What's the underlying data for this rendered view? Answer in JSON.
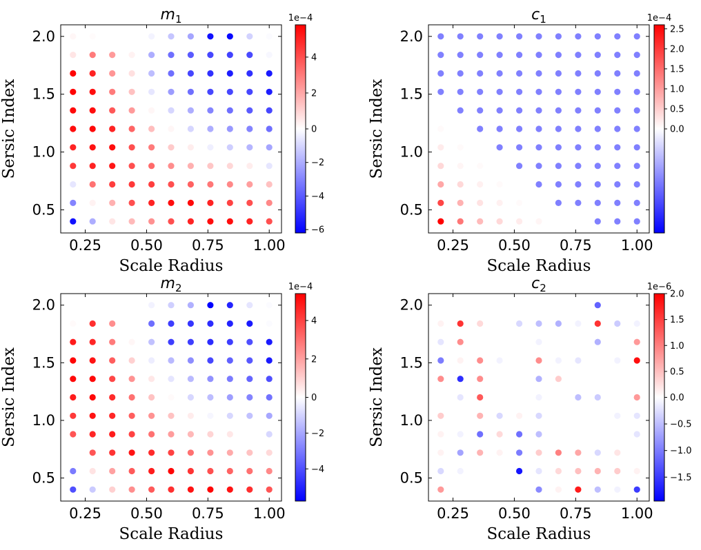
{
  "figure": {
    "colormap": [
      "#0000ff",
      "#ffffff",
      "#ff0000"
    ]
  },
  "chart_data": [
    {
      "type": "scatter",
      "title": "m",
      "title_subscript": "1",
      "xlabel": "Scale Radius",
      "ylabel": "Sersic Index",
      "xlim": [
        0.15,
        1.05
      ],
      "ylim": [
        0.3,
        2.1
      ],
      "xticks": [
        "0.25",
        "0.50",
        "0.75",
        "1.00"
      ],
      "yticks": [
        "0.5",
        "1.0",
        "1.5",
        "2.0"
      ],
      "x": [
        0.2,
        0.28,
        0.36,
        0.44,
        0.52,
        0.6,
        0.68,
        0.76,
        0.84,
        0.92,
        1.0
      ],
      "y": [
        0.4,
        0.56,
        0.72,
        0.88,
        1.04,
        1.2,
        1.36,
        1.52,
        1.68,
        1.84,
        2.0
      ],
      "colorbar": {
        "min": -6.2,
        "max": 5.8,
        "ticks": [
          "−6",
          "−4",
          "−2",
          "0",
          "2",
          "4"
        ],
        "tick_values": [
          -6,
          -4,
          -2,
          0,
          2,
          4
        ],
        "exponent": "1e−4"
      },
      "values": [
        [
          -5.8,
          -2.0,
          0.6,
          1.6,
          2.5,
          4.0,
          5.0,
          5.5,
          5.5,
          5.0,
          4.0
        ],
        [
          -3.0,
          0.3,
          1.8,
          4.0,
          5.0,
          5.5,
          5.6,
          5.0,
          4.3,
          4.0,
          2.7
        ],
        [
          -0.6,
          3.2,
          4.4,
          4.5,
          4.4,
          4.0,
          3.6,
          3.1,
          2.7,
          2.2,
          1.4
        ],
        [
          4.5,
          5.0,
          5.3,
          4.0,
          3.4,
          2.6,
          1.8,
          1.3,
          0.9,
          0.4,
          -0.6
        ],
        [
          5.0,
          5.4,
          5.5,
          4.0,
          3.0,
          1.2,
          0.4,
          -0.4,
          -1.2,
          -1.8,
          -2.2
        ],
        [
          5.5,
          5.6,
          5.0,
          3.5,
          1.5,
          0.2,
          -1.0,
          -2.0,
          -2.5,
          -3.0,
          -3.5
        ],
        [
          5.6,
          5.5,
          3.8,
          2.3,
          0.2,
          -1.0,
          -2.0,
          -3.0,
          -3.5,
          -4.0,
          -4.5
        ],
        [
          5.7,
          5.5,
          3.0,
          1.4,
          -0.6,
          -2.4,
          -3.5,
          -4.5,
          -4.5,
          -4.5,
          -5.5
        ],
        [
          5.7,
          5.0,
          2.4,
          0.7,
          -1.6,
          -3.5,
          -4.5,
          -5.0,
          -5.5,
          -5.0,
          -5.6
        ],
        [
          0.6,
          3.0,
          2.3,
          0.3,
          -2.0,
          -3.5,
          -4.0,
          -4.5,
          -4.6,
          -4.4,
          -0.2
        ],
        [
          0.2,
          0.1,
          0.0,
          0.0,
          -0.3,
          -1.4,
          -2.2,
          -5.8,
          -6.0,
          -1.1,
          -0.1
        ]
      ]
    },
    {
      "type": "scatter",
      "title": "c",
      "title_subscript": "1",
      "xlabel": "Scale Radius",
      "ylabel": "Sersic Index",
      "xlim": [
        0.15,
        1.05
      ],
      "ylim": [
        0.3,
        2.1
      ],
      "xticks": [
        "0.25",
        "0.50",
        "0.75",
        "1.00"
      ],
      "yticks": [
        "0.5",
        "1.0",
        "1.5",
        "2.0"
      ],
      "x": [
        0.2,
        0.28,
        0.36,
        0.44,
        0.52,
        0.6,
        0.68,
        0.76,
        0.84,
        0.92,
        1.0
      ],
      "y": [
        0.4,
        0.56,
        0.72,
        0.88,
        1.04,
        1.2,
        1.36,
        1.52,
        1.68,
        1.84,
        2.0
      ],
      "colorbar": {
        "min": -0.1,
        "max": 2.6,
        "ticks": [
          "0.0",
          "0.5",
          "1.0",
          "1.5",
          "2.0",
          "2.5"
        ],
        "tick_values": [
          0.0,
          0.5,
          1.0,
          1.5,
          2.0,
          2.5
        ],
        "exponent": "1e−4"
      },
      "values": [
        [
          2.6,
          1.4,
          0.7,
          0.4,
          0.2,
          0.1,
          0.0,
          0.0,
          -0.05,
          -0.05,
          -0.05
        ],
        [
          1.9,
          0.8,
          0.3,
          0.15,
          0.05,
          0.0,
          -0.05,
          -0.05,
          -0.05,
          -0.05,
          -0.05
        ],
        [
          0.9,
          0.4,
          0.15,
          0.05,
          0.0,
          -0.05,
          -0.05,
          -0.05,
          -0.05,
          -0.05,
          -0.05
        ],
        [
          0.4,
          0.1,
          0.05,
          0.0,
          -0.05,
          -0.05,
          -0.05,
          -0.05,
          -0.05,
          -0.05,
          -0.05
        ],
        [
          0.2,
          0.05,
          0.0,
          -0.05,
          -0.05,
          -0.05,
          -0.05,
          -0.05,
          -0.05,
          -0.05,
          -0.05
        ],
        [
          0.05,
          0.0,
          -0.05,
          -0.05,
          -0.05,
          -0.05,
          -0.05,
          -0.05,
          -0.05,
          -0.05,
          -0.05
        ],
        [
          0.0,
          -0.05,
          -0.05,
          -0.05,
          -0.05,
          -0.05,
          -0.05,
          -0.05,
          -0.05,
          -0.05,
          -0.05
        ],
        [
          -0.05,
          -0.05,
          -0.05,
          -0.05,
          -0.05,
          -0.05,
          -0.05,
          -0.05,
          -0.05,
          -0.05,
          -0.05
        ],
        [
          -0.05,
          -0.05,
          -0.05,
          -0.05,
          -0.05,
          -0.05,
          -0.05,
          -0.05,
          -0.05,
          -0.05,
          -0.05
        ],
        [
          -0.05,
          -0.05,
          -0.05,
          -0.05,
          -0.05,
          -0.05,
          -0.05,
          -0.05,
          -0.05,
          -0.05,
          -0.05
        ],
        [
          -0.05,
          -0.05,
          -0.05,
          -0.05,
          -0.05,
          -0.05,
          -0.05,
          -0.05,
          -0.05,
          -0.05,
          -0.05
        ]
      ]
    },
    {
      "type": "scatter",
      "title": "m",
      "title_subscript": "2",
      "xlabel": "Scale Radius",
      "ylabel": "Sersic Index",
      "xlim": [
        0.15,
        1.05
      ],
      "ylim": [
        0.3,
        2.1
      ],
      "xticks": [
        "0.25",
        "0.50",
        "0.75",
        "1.00"
      ],
      "yticks": [
        "0.5",
        "1.0",
        "1.5",
        "2.0"
      ],
      "x": [
        0.2,
        0.28,
        0.36,
        0.44,
        0.52,
        0.6,
        0.68,
        0.76,
        0.84,
        0.92,
        1.0
      ],
      "y": [
        0.4,
        0.56,
        0.72,
        0.88,
        1.04,
        1.2,
        1.36,
        1.52,
        1.68,
        1.84,
        2.0
      ],
      "colorbar": {
        "min": -5.8,
        "max": 5.4,
        "ticks": [
          "−4",
          "−2",
          "0",
          "2",
          "4"
        ],
        "tick_values": [
          -4,
          -2,
          0,
          2,
          4
        ],
        "exponent": "1e−4"
      },
      "values": [
        [
          -4.0,
          -1.2,
          1.0,
          2.4,
          3.5,
          4.4,
          5.0,
          5.3,
          5.0,
          4.4,
          3.6
        ],
        [
          -3.0,
          0.6,
          2.0,
          3.5,
          4.8,
          5.3,
          4.3,
          3.7,
          3.3,
          3.0,
          2.5
        ],
        [
          0.0,
          3.6,
          4.3,
          5.0,
          4.5,
          4.0,
          3.0,
          2.3,
          1.8,
          1.3,
          0.8
        ],
        [
          3.6,
          4.6,
          4.8,
          4.0,
          3.0,
          2.1,
          1.5,
          0.9,
          0.5,
          0.0,
          -0.9
        ],
        [
          4.2,
          5.0,
          4.6,
          3.4,
          2.3,
          1.3,
          0.4,
          -0.2,
          -0.9,
          -1.4,
          -2.0
        ],
        [
          4.8,
          5.2,
          4.5,
          3.0,
          1.3,
          0.1,
          -0.9,
          -1.5,
          -2.2,
          -2.8,
          -3.2
        ],
        [
          5.2,
          5.2,
          3.9,
          2.3,
          0.5,
          -0.6,
          -1.6,
          -2.5,
          -3.0,
          -3.5,
          -4.0
        ],
        [
          5.3,
          5.0,
          3.4,
          1.0,
          -0.4,
          -1.6,
          -2.6,
          -4.2,
          -3.6,
          -3.8,
          -5.2
        ],
        [
          4.8,
          4.6,
          2.8,
          0.2,
          -1.4,
          -4.4,
          -4.4,
          -4.8,
          -4.4,
          -4.0,
          -5.2
        ],
        [
          0.1,
          4.4,
          2.4,
          0.0,
          -3.3,
          -4.4,
          -4.6,
          -4.8,
          -5.0,
          -5.2,
          -0.1
        ],
        [
          0.0,
          0.0,
          0.0,
          0.0,
          -0.3,
          -1.1,
          -1.8,
          -5.8,
          -5.0,
          -0.6,
          -0.1
        ]
      ]
    },
    {
      "type": "scatter",
      "title": "c",
      "title_subscript": "2",
      "xlabel": "Scale Radius",
      "ylabel": "Sersic Index",
      "xlim": [
        0.15,
        1.05
      ],
      "ylim": [
        0.3,
        2.1
      ],
      "xticks": [
        "0.25",
        "0.50",
        "0.75",
        "1.00"
      ],
      "yticks": [
        "0.5",
        "1.0",
        "1.5",
        "2.0"
      ],
      "x": [
        0.2,
        0.28,
        0.36,
        0.44,
        0.52,
        0.6,
        0.68,
        0.76,
        0.84,
        0.92,
        1.0
      ],
      "y": [
        0.4,
        0.56,
        0.72,
        0.88,
        1.04,
        1.2,
        1.36,
        1.52,
        1.68,
        1.84,
        2.0
      ],
      "colorbar": {
        "min": -1.95,
        "max": 2.0,
        "ticks": [
          "−1.5",
          "−1.0",
          "−0.5",
          "0.0",
          "0.5",
          "1.0",
          "1.5",
          "2.0"
        ],
        "tick_values": [
          -1.5,
          -1.0,
          -0.5,
          0.0,
          0.5,
          1.0,
          1.5,
          2.0
        ],
        "exponent": "1e−6"
      },
      "values": [
        [
          0.8,
          0.0,
          0.0,
          0.0,
          0.0,
          -0.9,
          0.1,
          1.8,
          -0.5,
          -0.1,
          -1.5
        ],
        [
          -0.3,
          -0.1,
          0.0,
          0.0,
          -1.8,
          -0.2,
          0.3,
          0.5,
          0.6,
          0.4,
          0.1
        ],
        [
          0.1,
          -0.7,
          0.6,
          0.1,
          -1.0,
          0.4,
          1.0,
          0.7,
          -0.3,
          0.2,
          0.0
        ],
        [
          0.1,
          -0.1,
          -1.1,
          0.3,
          -1.1,
          -0.5,
          0.0,
          0.0,
          0.0,
          0.0,
          -0.2
        ],
        [
          0.4,
          0.0,
          0.6,
          -0.3,
          0.1,
          -0.3,
          0.0,
          0.0,
          0.0,
          -0.1,
          -0.2
        ],
        [
          0.0,
          -0.2,
          1.3,
          0.0,
          0.0,
          -0.1,
          0.0,
          -0.5,
          -0.4,
          0.0,
          0.8
        ],
        [
          0.9,
          -1.6,
          0.9,
          0.0,
          0.0,
          -0.6,
          0.4,
          0.0,
          0.0,
          0.0,
          0.0
        ],
        [
          -1.0,
          0.1,
          0.9,
          -0.1,
          0.0,
          0.9,
          -0.1,
          -0.2,
          0.0,
          -0.1,
          1.9
        ],
        [
          -0.2,
          0.9,
          0.0,
          0.0,
          0.0,
          -0.1,
          0.0,
          0.0,
          -0.6,
          0.0,
          0.8
        ],
        [
          0.1,
          1.6,
          0.3,
          0.0,
          -0.3,
          -0.5,
          -0.6,
          -0.1,
          1.6,
          -0.4,
          -0.1
        ],
        [
          0.0,
          0.0,
          0.0,
          0.0,
          0.0,
          0.0,
          0.0,
          0.0,
          -1.2,
          0.0,
          0.0
        ]
      ]
    }
  ]
}
